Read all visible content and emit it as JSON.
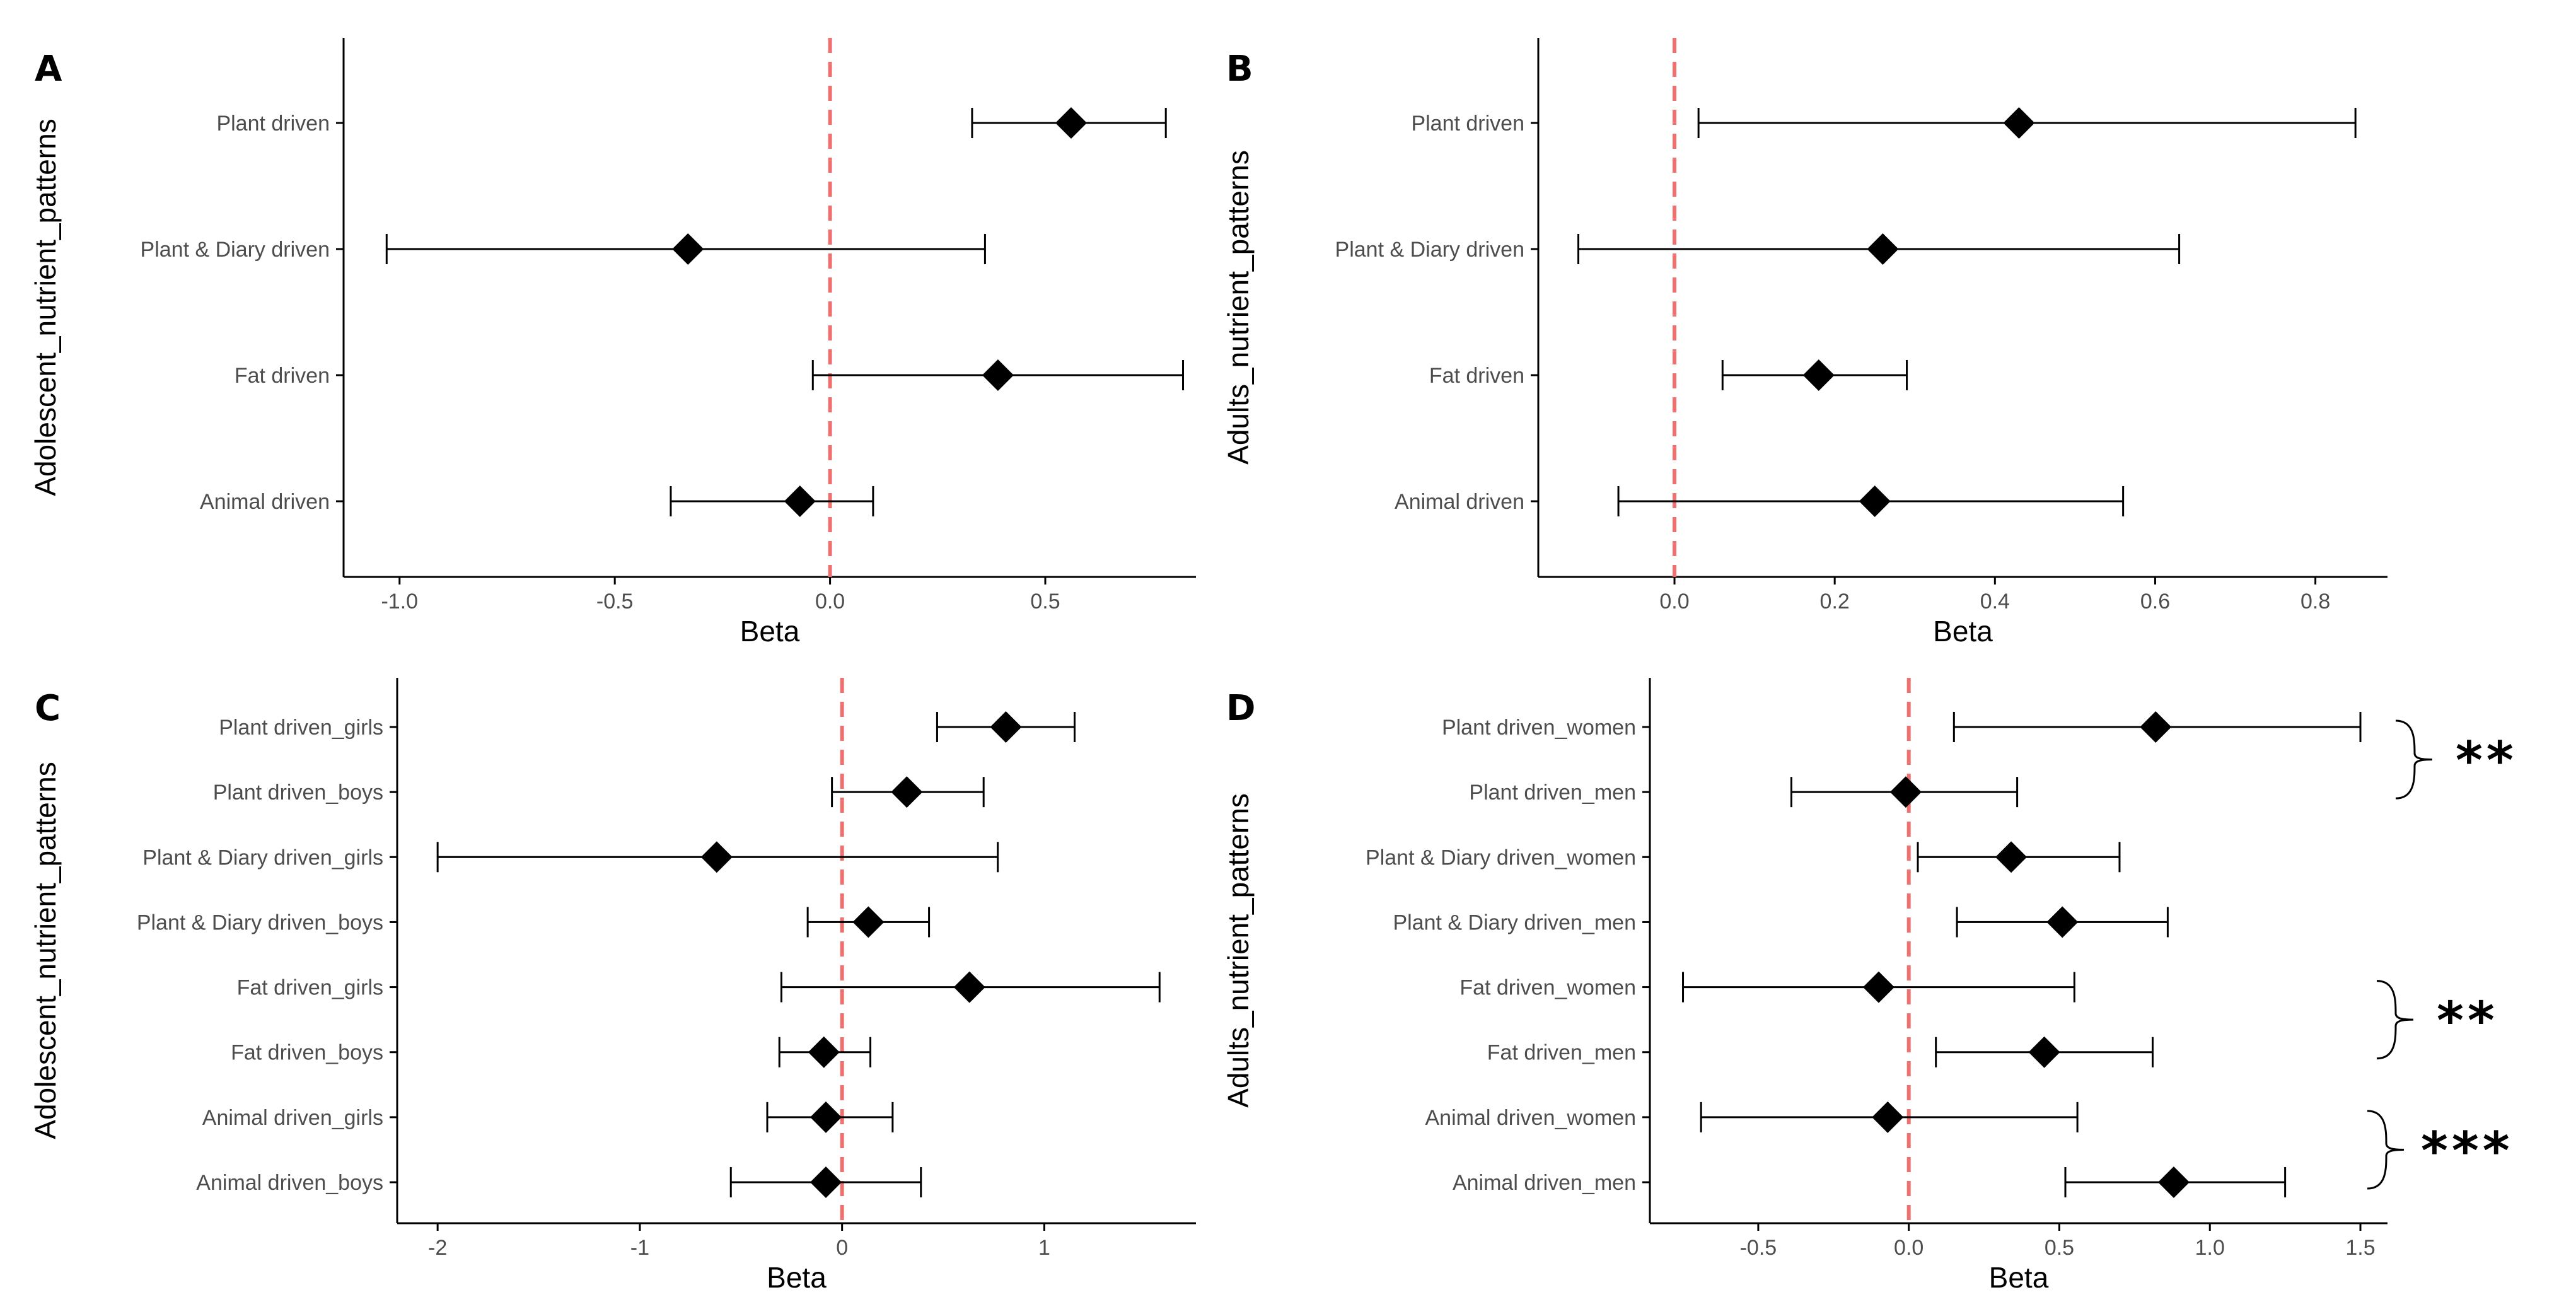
{
  "colors": {
    "ref_line": "#f07070",
    "marker": "#000000",
    "axis": "#000000",
    "tick_text": "#4d4d4d"
  },
  "chart_data": [
    {
      "panel": "A",
      "type": "forest",
      "xlabel": "Beta",
      "ylabel": "Adolescent_nutrient_patterns",
      "xlim": [
        -1.13,
        0.85
      ],
      "xticks": [
        -1.0,
        -0.5,
        0.0,
        0.5
      ],
      "xtick_labels": [
        "-1.0",
        "-0.5",
        "0.0",
        "0.5"
      ],
      "reference_x": 0,
      "rows": [
        {
          "label": "Plant driven",
          "beta": 0.56,
          "lower": 0.33,
          "upper": 0.78
        },
        {
          "label": "Plant & Diary driven",
          "beta": -0.33,
          "lower": -1.03,
          "upper": 0.36
        },
        {
          "label": "Fat driven",
          "beta": 0.39,
          "lower": -0.04,
          "upper": 0.82
        },
        {
          "label": "Animal driven",
          "beta": -0.07,
          "lower": -0.37,
          "upper": 0.1
        }
      ]
    },
    {
      "panel": "B",
      "type": "forest",
      "xlabel": "Beta",
      "ylabel": "Adults_nutrient_patterns",
      "xlim": [
        -0.17,
        0.89
      ],
      "xticks": [
        0.0,
        0.2,
        0.4,
        0.6,
        0.8
      ],
      "xtick_labels": [
        "0.0",
        "0.2",
        "0.4",
        "0.6",
        "0.8"
      ],
      "reference_x": 0,
      "rows": [
        {
          "label": "Plant driven",
          "beta": 0.43,
          "lower": 0.03,
          "upper": 0.85
        },
        {
          "label": "Plant & Diary driven",
          "beta": 0.26,
          "lower": -0.12,
          "upper": 0.63
        },
        {
          "label": "Fat driven",
          "beta": 0.18,
          "lower": 0.06,
          "upper": 0.29
        },
        {
          "label": "Animal driven",
          "beta": 0.25,
          "lower": -0.07,
          "upper": 0.56
        }
      ]
    },
    {
      "panel": "C",
      "type": "forest",
      "xlabel": "Beta",
      "ylabel": "Adolescent_nutrient_patterns",
      "xlim": [
        -2.2,
        1.75
      ],
      "xticks": [
        -2,
        -1,
        0,
        1
      ],
      "xtick_labels": [
        "-2",
        "-1",
        "0",
        "1"
      ],
      "reference_x": 0,
      "rows": [
        {
          "label": "Plant driven_girls",
          "beta": 0.81,
          "lower": 0.47,
          "upper": 1.15
        },
        {
          "label": "Plant driven_boys",
          "beta": 0.32,
          "lower": -0.05,
          "upper": 0.7
        },
        {
          "label": "Plant & Diary driven_girls",
          "beta": -0.62,
          "lower": -2.0,
          "upper": 0.77
        },
        {
          "label": "Plant & Diary driven_boys",
          "beta": 0.13,
          "lower": -0.17,
          "upper": 0.43
        },
        {
          "label": "Fat driven_girls",
          "beta": 0.63,
          "lower": -0.3,
          "upper": 1.57
        },
        {
          "label": "Fat driven_boys",
          "beta": -0.09,
          "lower": -0.31,
          "upper": 0.14
        },
        {
          "label": "Animal driven_girls",
          "beta": -0.08,
          "lower": -0.37,
          "upper": 0.25
        },
        {
          "label": "Animal driven_boys",
          "beta": -0.08,
          "lower": -0.55,
          "upper": 0.39
        }
      ]
    },
    {
      "panel": "D",
      "type": "forest",
      "xlabel": "Beta",
      "ylabel": "Adults_nutrient_patterns",
      "xlim": [
        -0.86,
        1.59
      ],
      "xticks": [
        -0.5,
        0.0,
        0.5,
        1.0,
        1.5
      ],
      "xtick_labels": [
        "-0.5",
        "0.0",
        "0.5",
        "1.0",
        "1.5"
      ],
      "reference_x": 0,
      "rows": [
        {
          "label": "Plant driven_women",
          "beta": 0.82,
          "lower": 0.15,
          "upper": 1.5
        },
        {
          "label": "Plant driven_men",
          "beta": -0.01,
          "lower": -0.39,
          "upper": 0.36
        },
        {
          "label": "Plant & Diary driven_women",
          "beta": 0.34,
          "lower": 0.03,
          "upper": 0.7
        },
        {
          "label": "Plant & Diary driven_men",
          "beta": 0.51,
          "lower": 0.16,
          "upper": 0.86
        },
        {
          "label": "Fat driven_women",
          "beta": -0.1,
          "lower": -0.75,
          "upper": 0.55
        },
        {
          "label": "Fat driven_men",
          "beta": 0.45,
          "lower": 0.09,
          "upper": 0.81
        },
        {
          "label": "Animal driven_women",
          "beta": -0.07,
          "lower": -0.69,
          "upper": 0.56
        },
        {
          "label": "Animal driven_men",
          "beta": 0.88,
          "lower": 0.52,
          "upper": 1.25
        }
      ],
      "significance_brackets": [
        {
          "rows": [
            0,
            1
          ],
          "label": "**"
        },
        {
          "rows": [
            4,
            5
          ],
          "label": "**"
        },
        {
          "rows": [
            6,
            7
          ],
          "label": "***"
        }
      ]
    }
  ]
}
